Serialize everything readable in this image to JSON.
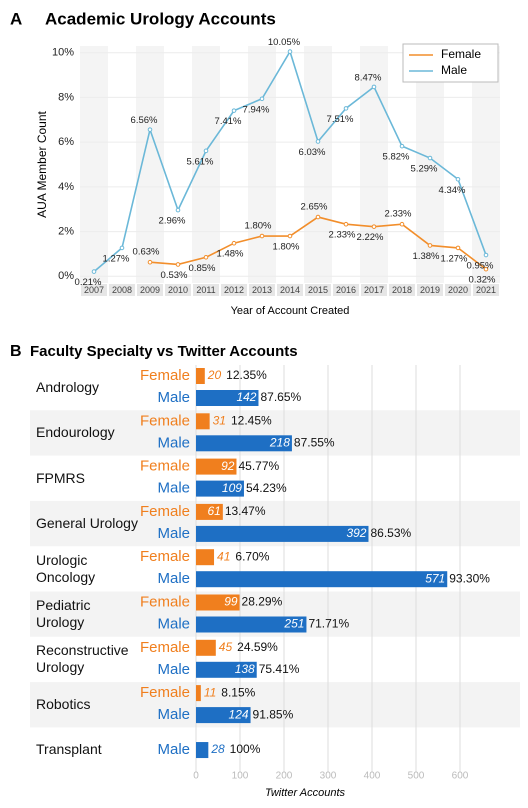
{
  "chart_data": [
    {
      "type": "line",
      "panel": "A",
      "title": "Academic Urology Accounts",
      "x": [
        2007,
        2008,
        2009,
        2010,
        2011,
        2012,
        2013,
        2014,
        2015,
        2016,
        2017,
        2018,
        2019,
        2020,
        2021
      ],
      "series": [
        {
          "name": "Female",
          "color": "#f28e2b",
          "values": [
            null,
            null,
            0.63,
            0.53,
            0.85,
            1.48,
            1.8,
            1.8,
            2.65,
            2.33,
            2.22,
            2.33,
            1.38,
            1.27,
            0.32
          ],
          "value_labels": [
            null,
            null,
            "0.63%",
            "0.53%",
            "0.85%",
            "1.48%",
            "1.80%",
            "1.80%",
            "2.65%",
            "2.33%",
            "2.22%",
            "2.33%",
            "1.38%",
            "1.27%",
            "0.32%"
          ]
        },
        {
          "name": "Male",
          "color": "#6bb8d8",
          "values": [
            0.21,
            1.27,
            6.56,
            2.96,
            5.61,
            7.41,
            7.94,
            10.05,
            6.03,
            7.51,
            8.47,
            5.82,
            5.29,
            4.34,
            0.95
          ],
          "value_labels": [
            "0.21%",
            "1.27%",
            "6.56%",
            "2.96%",
            "5.61%",
            "7.41%",
            "7.94%",
            "10.05%",
            "6.03%",
            "7.51%",
            "8.47%",
            "5.82%",
            "5.29%",
            "4.34%",
            "0.95%"
          ]
        }
      ],
      "xlim": [
        2006.5,
        2021.5
      ],
      "xticks": [
        2007,
        2008,
        2009,
        2010,
        2011,
        2012,
        2013,
        2014,
        2015,
        2016,
        2017,
        2018,
        2019,
        2020,
        2021
      ],
      "ylim": [
        -0.3,
        10.3
      ],
      "yticks": [
        {
          "value": 0,
          "label": "0%"
        },
        {
          "value": 2,
          "label": "2%"
        },
        {
          "value": 4,
          "label": "4%"
        },
        {
          "value": 6,
          "label": "6%"
        },
        {
          "value": 8,
          "label": "8%"
        },
        {
          "value": 10,
          "label": "10%"
        }
      ],
      "ylabel": "AUA Member Count",
      "xlabel": "Year of Account Created",
      "legend": "upper right",
      "grid": true
    },
    {
      "type": "barh",
      "panel": "B",
      "title": "Faculty Specialty vs Twitter Accounts",
      "categories": [
        "Andrology",
        "Endourology",
        "FPMRS",
        "General Urology",
        "Urologic Oncology",
        "Pediatric Urology",
        "Reconstructive Urology",
        "Robotics",
        "Transplant"
      ],
      "series": [
        {
          "name": "Female",
          "color": "#f07f1e",
          "values": [
            20,
            31,
            92,
            61,
            41,
            99,
            45,
            11,
            null
          ],
          "share_labels": [
            "12.35%",
            "12.45%",
            "45.77%",
            "13.47%",
            "6.70%",
            "28.29%",
            "24.59%",
            "8.15%",
            null
          ]
        },
        {
          "name": "Male",
          "color": "#1e6fc4",
          "values": [
            142,
            218,
            109,
            392,
            571,
            251,
            138,
            124,
            28
          ],
          "share_labels": [
            "87.65%",
            "87.55%",
            "54.23%",
            "86.53%",
            "93.30%",
            "71.71%",
            "75.41%",
            "91.85%",
            "100%"
          ]
        }
      ],
      "xlim": [
        0,
        600
      ],
      "xticks": [
        0,
        100,
        200,
        300,
        400,
        500,
        600
      ],
      "xlabel": "Twitter Accounts",
      "grid": true
    }
  ]
}
